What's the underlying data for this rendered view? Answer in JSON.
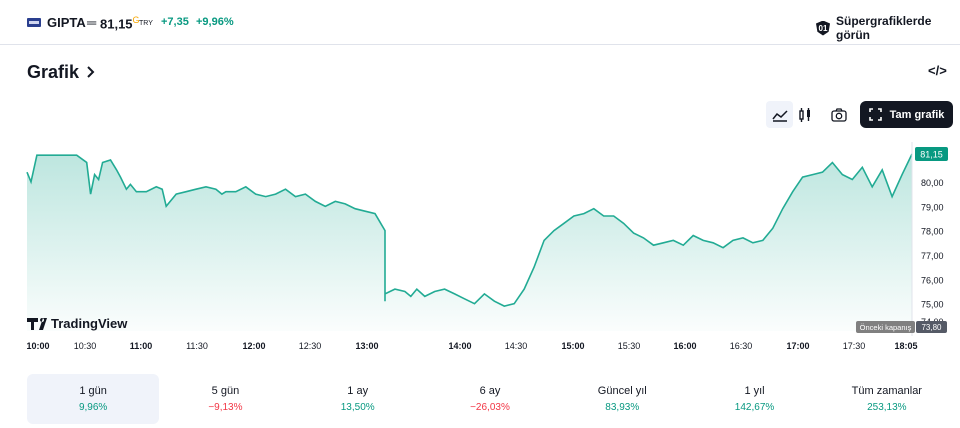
{
  "header": {
    "symbol": "GIPTA",
    "separator": "═",
    "price": "81,15",
    "price_superscript": "G",
    "currency": "TRY",
    "change": "+7,35",
    "change_percent": "+9,96%",
    "supercharts_label": "Süpergrafiklerde görün",
    "supercharts_icon": "01"
  },
  "section": {
    "title": "Grafik",
    "embed_icon": "</>"
  },
  "toolbar": {
    "fullchart_label": "Tam grafik",
    "icons": [
      "area-chart-icon",
      "candles-icon",
      "camera-icon",
      "fullscreen-icon"
    ]
  },
  "colors": {
    "up": "#089981",
    "down": "#f23645",
    "line": "#22ab94"
  },
  "chart_data": {
    "type": "area",
    "ylim": [
      74.0,
      81.6
    ],
    "y_ticks": [
      "81,15",
      "80,00",
      "79,00",
      "78,00",
      "77,00",
      "76,00",
      "75,00",
      "74,00"
    ],
    "last_price_label": "81,15",
    "prev_close_label": "Önceki kapanış",
    "prev_close_value": "73,80",
    "x_ticks": [
      "10:00",
      "10:30",
      "11:00",
      "11:30",
      "12:00",
      "12:30",
      "13:00",
      "14:00",
      "14:30",
      "15:00",
      "15:30",
      "16:00",
      "16:30",
      "17:00",
      "17:30",
      "18:05"
    ],
    "bold_ticks": [
      "10:00",
      "11:00",
      "12:00",
      "13:00",
      "14:00",
      "15:00",
      "16:00",
      "17:00",
      "18:05"
    ],
    "watermark": "TradingView",
    "x": [
      "10:00",
      "10:02",
      "10:05",
      "10:07",
      "10:10",
      "10:12",
      "10:15",
      "10:20",
      "10:25",
      "10:30",
      "10:32",
      "10:34",
      "10:36",
      "10:38",
      "10:42",
      "10:45",
      "10:47",
      "10:50",
      "10:52",
      "10:55",
      "11:00",
      "11:05",
      "11:08",
      "11:10",
      "11:15",
      "11:20",
      "11:25",
      "11:30",
      "11:35",
      "11:38",
      "11:40",
      "11:45",
      "11:50",
      "11:55",
      "12:00",
      "12:05",
      "12:10",
      "12:15",
      "12:20",
      "12:25",
      "12:30",
      "12:35",
      "12:40",
      "12:45",
      "12:50",
      "12:55",
      "13:00",
      "13:03",
      "13:06",
      "13:10",
      "13:13",
      "13:16",
      "13:20",
      "13:25",
      "13:30",
      "13:35",
      "13:40",
      "13:45",
      "13:50",
      "13:53",
      "13:56",
      "14:00",
      "14:05",
      "14:10",
      "14:15",
      "14:20",
      "14:25",
      "14:30",
      "14:35",
      "14:40",
      "14:45",
      "14:50",
      "14:55",
      "15:00",
      "15:05",
      "15:10",
      "15:15",
      "15:20",
      "15:25",
      "15:30",
      "15:35",
      "15:40",
      "15:45",
      "15:50",
      "15:55",
      "16:00",
      "16:05",
      "16:10",
      "16:15",
      "16:20",
      "16:25",
      "16:30",
      "16:35",
      "16:40",
      "16:45",
      "16:50",
      "16:55",
      "17:00",
      "17:05",
      "17:10",
      "17:15",
      "17:20",
      "17:25",
      "17:30",
      "17:35",
      "17:40",
      "17:45",
      "17:50",
      "17:55",
      "18:00",
      "18:05"
    ],
    "values": [
      80.4,
      80.0,
      81.1,
      81.1,
      81.1,
      81.1,
      81.1,
      81.1,
      81.1,
      80.8,
      79.5,
      80.3,
      80.1,
      80.8,
      80.9,
      80.5,
      80.2,
      79.7,
      79.9,
      79.6,
      79.6,
      79.8,
      79.7,
      79.0,
      79.5,
      79.6,
      79.7,
      79.8,
      79.7,
      79.5,
      79.6,
      79.6,
      79.8,
      79.5,
      79.4,
      79.5,
      79.7,
      79.4,
      79.5,
      79.2,
      79.0,
      79.2,
      79.1,
      78.9,
      78.8,
      78.7,
      78.0,
      77.5,
      77.0,
      76.3,
      75.6,
      75.9,
      75.8,
      75.7,
      75.3,
      75.1,
      75.4,
      75.6,
      75.5,
      75.3,
      75.6,
      75.3,
      75.5,
      75.6,
      75.4,
      75.2,
      75.0,
      75.4,
      75.1,
      74.9,
      75.0,
      75.6,
      76.5,
      77.6,
      78.0,
      78.3,
      78.6,
      78.7,
      78.9,
      78.6,
      78.6,
      78.3,
      77.9,
      77.7,
      77.4,
      77.5,
      77.6,
      77.4,
      77.8,
      77.6,
      77.5,
      77.3,
      77.6,
      77.7,
      77.5,
      77.6,
      78.1,
      78.9,
      79.6,
      80.2,
      80.3,
      80.4,
      80.8,
      80.3,
      80.1,
      80.6,
      79.8,
      80.5,
      79.4,
      80.3,
      81.15
    ]
  },
  "periods": [
    {
      "label": "1 gün",
      "value": "9,96%",
      "dir": "pos"
    },
    {
      "label": "5 gün",
      "value": "−9,13%",
      "dir": "neg"
    },
    {
      "label": "1 ay",
      "value": "13,50%",
      "dir": "pos"
    },
    {
      "label": "6 ay",
      "value": "−26,03%",
      "dir": "neg"
    },
    {
      "label": "Güncel yıl",
      "value": "83,93%",
      "dir": "pos"
    },
    {
      "label": "1 yıl",
      "value": "142,67%",
      "dir": "pos"
    },
    {
      "label": "Tüm zamanlar",
      "value": "253,13%",
      "dir": "pos"
    }
  ]
}
